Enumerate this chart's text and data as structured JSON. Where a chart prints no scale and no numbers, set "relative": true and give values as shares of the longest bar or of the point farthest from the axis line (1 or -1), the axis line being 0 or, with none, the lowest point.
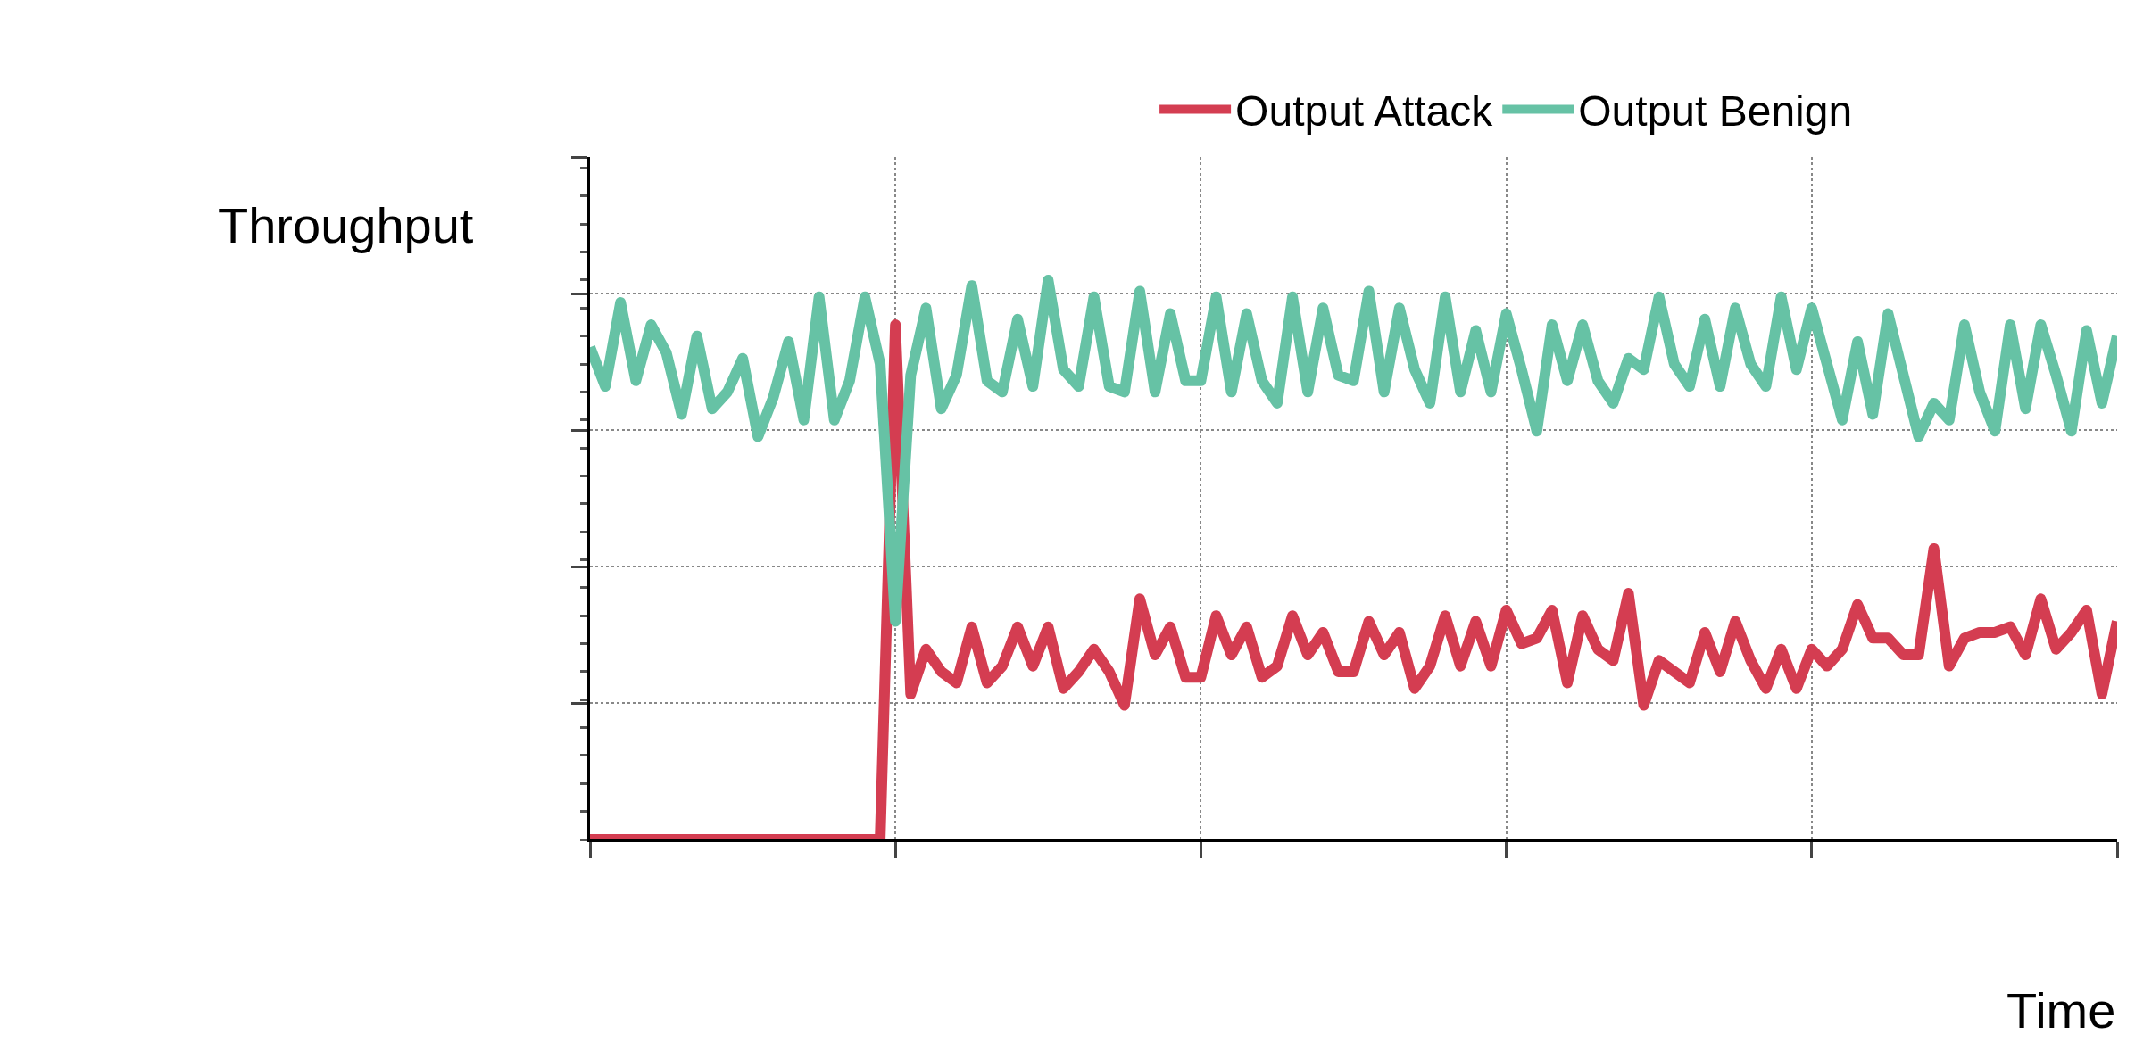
{
  "chart_data": {
    "type": "line",
    "relative": true,
    "xlabel": "Time",
    "ylabel": "Throughput",
    "legend": "top",
    "grid": true,
    "line_style": "solid",
    "categories": [
      null,
      null,
      null,
      null,
      null,
      null,
      null,
      null,
      null,
      null,
      null,
      null,
      null,
      null,
      null,
      null,
      null,
      null,
      null,
      null,
      null,
      null,
      null,
      null,
      null,
      null,
      null,
      null,
      null,
      null,
      null,
      null,
      null,
      null,
      null,
      null,
      null,
      null,
      null,
      null,
      null,
      null,
      null,
      null,
      null,
      null,
      null,
      null,
      null,
      null,
      null,
      null,
      null,
      null,
      null,
      null,
      null,
      null,
      null,
      null,
      null,
      null,
      null,
      null,
      null,
      null,
      null,
      null,
      null,
      null,
      null,
      null,
      null,
      null,
      null,
      null,
      null,
      null,
      null,
      null,
      null,
      null,
      null,
      null,
      null,
      null,
      null,
      null,
      null,
      null,
      null,
      null,
      null,
      null,
      null,
      null,
      null,
      null,
      null,
      null,
      null
    ],
    "series": [
      {
        "name": "Output Attack",
        "color": "#d43d51",
        "values": [
          0,
          0,
          0,
          0,
          0,
          0,
          0,
          0,
          0,
          0,
          0,
          0,
          0,
          0,
          0,
          0,
          0,
          0,
          0,
          0,
          0.92,
          0.26,
          0.34,
          0.3,
          0.28,
          0.38,
          0.28,
          0.31,
          0.38,
          0.31,
          0.38,
          0.27,
          0.3,
          0.34,
          0.3,
          0.24,
          0.43,
          0.33,
          0.38,
          0.29,
          0.29,
          0.4,
          0.33,
          0.38,
          0.29,
          0.31,
          0.4,
          0.33,
          0.37,
          0.3,
          0.3,
          0.39,
          0.33,
          0.37,
          0.27,
          0.31,
          0.4,
          0.31,
          0.39,
          0.31,
          0.41,
          0.35,
          0.36,
          0.41,
          0.28,
          0.4,
          0.34,
          0.32,
          0.44,
          0.24,
          0.32,
          0.3,
          0.28,
          0.37,
          0.3,
          0.39,
          0.32,
          0.27,
          0.34,
          0.27,
          0.34,
          0.31,
          0.34,
          0.42,
          0.36,
          0.36,
          0.33,
          0.33,
          0.52,
          0.31,
          0.36,
          0.37,
          0.37,
          0.38,
          0.33,
          0.43,
          0.34,
          0.37,
          0.41,
          0.26,
          0.39
        ]
      },
      {
        "name": "Output Benign",
        "color": "#66c2a5",
        "values": [
          0.88,
          0.81,
          0.96,
          0.82,
          0.92,
          0.87,
          0.76,
          0.9,
          0.77,
          0.8,
          0.86,
          0.72,
          0.79,
          0.89,
          0.75,
          0.97,
          0.75,
          0.82,
          0.97,
          0.85,
          0.39,
          0.83,
          0.95,
          0.77,
          0.83,
          0.99,
          0.82,
          0.8,
          0.93,
          0.81,
          1.0,
          0.84,
          0.81,
          0.97,
          0.81,
          0.8,
          0.98,
          0.8,
          0.94,
          0.82,
          0.82,
          0.97,
          0.8,
          0.94,
          0.82,
          0.78,
          0.97,
          0.8,
          0.95,
          0.83,
          0.82,
          0.98,
          0.8,
          0.95,
          0.84,
          0.78,
          0.97,
          0.8,
          0.91,
          0.8,
          0.94,
          0.84,
          0.73,
          0.92,
          0.82,
          0.92,
          0.82,
          0.78,
          0.86,
          0.84,
          0.97,
          0.85,
          0.81,
          0.93,
          0.81,
          0.95,
          0.85,
          0.81,
          0.97,
          0.84,
          0.95,
          0.85,
          0.75,
          0.89,
          0.76,
          0.94,
          0.83,
          0.72,
          0.78,
          0.75,
          0.92,
          0.8,
          0.73,
          0.92,
          0.77,
          0.92,
          0.83,
          0.73,
          0.91,
          0.78,
          0.9
        ]
      }
    ]
  }
}
